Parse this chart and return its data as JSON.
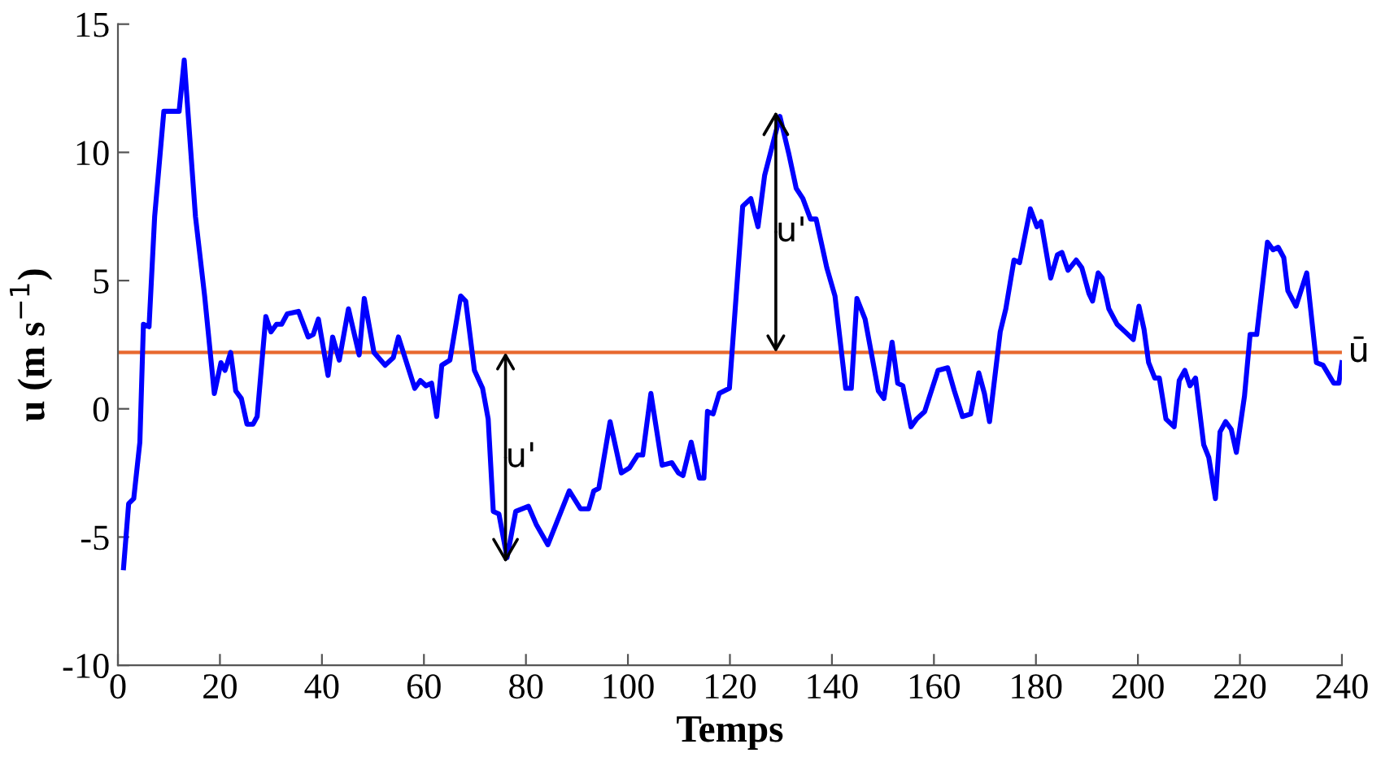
{
  "chart_data": {
    "type": "line",
    "xlabel": "Temps",
    "ylabel": "u (m s$^{−1}$)",
    "xlim": [
      0,
      240
    ],
    "ylim": [
      -10,
      15
    ],
    "xticks": [
      0,
      20,
      40,
      60,
      80,
      100,
      120,
      140,
      160,
      180,
      200,
      220,
      240
    ],
    "yticks": [
      -10,
      -5,
      0,
      5,
      10,
      15
    ],
    "grid": false,
    "legend": false,
    "marker": "none",
    "line_style": "solid",
    "series": [
      {
        "color": "#0000ff",
        "x": [
          1.1,
          2.1,
          3.1,
          4.3,
          5,
          6.1,
          7.2,
          9,
          12,
          13,
          15.2,
          17,
          18.9,
          20.2,
          21,
          22.1,
          23.1,
          24.2,
          25.3,
          26.5,
          27.3,
          29,
          30,
          31.1,
          32.1,
          33.2,
          35.4,
          37.3,
          38.3,
          39.3,
          41.2,
          42.1,
          43.4,
          45.2,
          47.3,
          48.3,
          50.2,
          52.4,
          54,
          55,
          58.2,
          59.3,
          60.4,
          61.5,
          62.5,
          63.5,
          65.1,
          67.2,
          68.2,
          69.9,
          71.5,
          72.6,
          73.6,
          74.7,
          76.3,
          78,
          80.5,
          82,
          84.3,
          88.5,
          90.7,
          92.3,
          93.3,
          94.3,
          96.5,
          98.7,
          100.3,
          101.9,
          102.9,
          104.5,
          106.7,
          108.6,
          109.9,
          110.8,
          112.4,
          114,
          114.9,
          115.6,
          116.7,
          117.9,
          119.9,
          122.5,
          124.1,
          125.5,
          126.8,
          129.8,
          131.6,
          133,
          134.3,
          135.8,
          136.9,
          139,
          140.6,
          142.7,
          143.8,
          144.9,
          146.5,
          149.1,
          150.2,
          151.8,
          152.9,
          153.9,
          155.5,
          156.6,
          158.2,
          160.8,
          162.7,
          164,
          165.6,
          167.2,
          168.8,
          169.9,
          170.9,
          173,
          174.1,
          175.7,
          176.8,
          178.9,
          180.2,
          181,
          182.9,
          184.2,
          185.1,
          186.3,
          187.9,
          189,
          190.4,
          191.1,
          192.2,
          193,
          194.3,
          195.9,
          197.5,
          199.1,
          200.2,
          201.2,
          202.1,
          203.3,
          204.2,
          205.5,
          207.1,
          208.1,
          209.2,
          210.2,
          211.3,
          212.9,
          213.9,
          215.2,
          216.1,
          217.2,
          218.3,
          219.3,
          220.9,
          222,
          223.3,
          225.4,
          226.5,
          227.5,
          228.6,
          229.4,
          231,
          233.1,
          235,
          236.3,
          238.4,
          239.4,
          240
        ],
        "values": [
          -6.2,
          -3.7,
          -3.5,
          -1.3,
          3.3,
          3.2,
          7.5,
          11.6,
          11.6,
          13.6,
          7.5,
          4.4,
          0.6,
          1.8,
          1.5,
          2.2,
          0.7,
          0.4,
          -0.6,
          -0.6,
          -0.3,
          3.6,
          3.0,
          3.3,
          3.3,
          3.7,
          3.8,
          2.8,
          2.9,
          3.5,
          1.3,
          2.8,
          1.9,
          3.9,
          2.1,
          4.3,
          2.2,
          1.7,
          2.0,
          2.8,
          0.8,
          1.1,
          0.9,
          1.0,
          -0.3,
          1.7,
          1.9,
          4.4,
          4.2,
          1.5,
          0.8,
          -0.4,
          -4.0,
          -4.1,
          -5.8,
          -4.0,
          -3.8,
          -4.5,
          -5.3,
          -3.2,
          -3.9,
          -3.9,
          -3.2,
          -3.1,
          -0.5,
          -2.5,
          -2.3,
          -1.8,
          -1.8,
          0.6,
          -2.2,
          -2.1,
          -2.5,
          -2.6,
          -1.3,
          -2.7,
          -2.7,
          -0.1,
          -0.2,
          0.6,
          0.8,
          7.9,
          8.2,
          7.1,
          9.1,
          11.4,
          9.9,
          8.6,
          8.2,
          7.4,
          7.4,
          5.5,
          4.4,
          0.8,
          0.8,
          4.3,
          3.5,
          0.7,
          0.4,
          2.6,
          1.0,
          0.9,
          -0.7,
          -0.4,
          -0.1,
          1.5,
          1.6,
          0.7,
          -0.3,
          -0.2,
          1.4,
          0.6,
          -0.5,
          3.0,
          3.9,
          5.8,
          5.7,
          7.8,
          7.1,
          7.3,
          5.1,
          6.0,
          6.1,
          5.4,
          5.8,
          5.5,
          4.5,
          4.2,
          5.3,
          5.1,
          3.9,
          3.3,
          3.0,
          2.7,
          4.0,
          3.1,
          1.8,
          1.2,
          1.2,
          -0.4,
          -0.7,
          1.1,
          1.5,
          0.9,
          1.2,
          -1.4,
          -1.9,
          -3.5,
          -0.9,
          -0.5,
          -0.8,
          -1.7,
          0.5,
          2.9,
          2.9,
          6.5,
          6.2,
          6.3,
          5.9,
          4.6,
          4.0,
          5.3,
          1.8,
          1.7,
          1.0,
          1.0,
          1.8
        ]
      }
    ],
    "ref_lines": [
      {
        "axis": "y",
        "value": 2.2,
        "label": "ū",
        "color": "#e8692f"
      }
    ],
    "annotations": [
      {
        "text": "u'",
        "x": 76,
        "y": -6
      },
      {
        "text": "u'",
        "x": 129,
        "y": 11.6
      }
    ]
  }
}
